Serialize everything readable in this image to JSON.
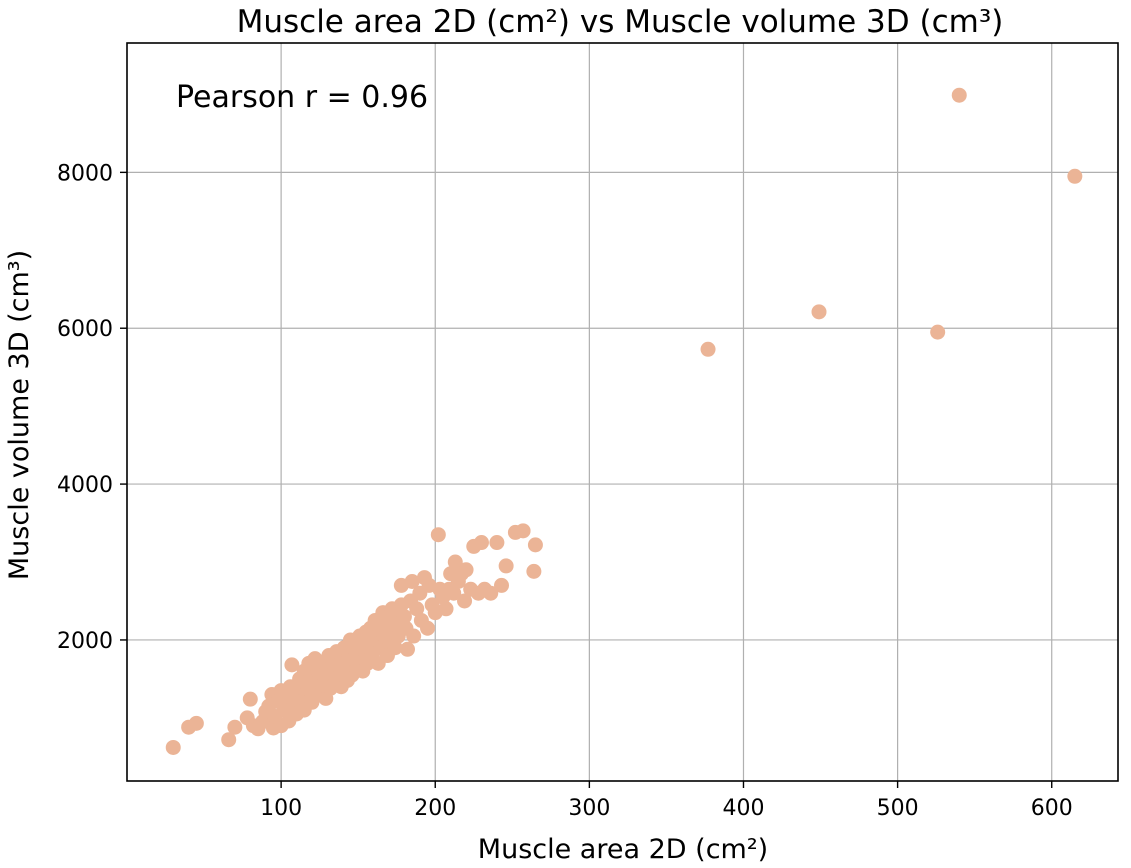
{
  "chart_data": {
    "type": "scatter",
    "title": "Muscle area 2D (cm²) vs Muscle volume 3D (cm³)",
    "xlabel": "Muscle area 2D (cm²)",
    "ylabel": "Muscle volume 3D (cm³)",
    "xlim": [
      0,
      643
    ],
    "ylim": [
      190,
      9660
    ],
    "x_ticks": [
      100,
      200,
      300,
      400,
      500,
      600
    ],
    "y_ticks": [
      2000,
      4000,
      6000,
      8000
    ],
    "grid": true,
    "marker_color": "#ebb496",
    "annotation": "Pearson r = 0.96",
    "points": [
      [
        30,
        620
      ],
      [
        40,
        880
      ],
      [
        45,
        930
      ],
      [
        66,
        720
      ],
      [
        70,
        880
      ],
      [
        78,
        1000
      ],
      [
        80,
        1240
      ],
      [
        82,
        900
      ],
      [
        85,
        860
      ],
      [
        88,
        950
      ],
      [
        90,
        1080
      ],
      [
        92,
        1150
      ],
      [
        94,
        1300
      ],
      [
        95,
        870
      ],
      [
        96,
        1020
      ],
      [
        98,
        1210
      ],
      [
        100,
        1350
      ],
      [
        100,
        900
      ],
      [
        102,
        1100
      ],
      [
        104,
        1250
      ],
      [
        105,
        960
      ],
      [
        106,
        1400
      ],
      [
        107,
        1680
      ],
      [
        108,
        1150
      ],
      [
        110,
        1300
      ],
      [
        110,
        1050
      ],
      [
        112,
        1500
      ],
      [
        113,
        1200
      ],
      [
        114,
        1380
      ],
      [
        115,
        1600
      ],
      [
        115,
        1100
      ],
      [
        116,
        1450
      ],
      [
        117,
        1280
      ],
      [
        118,
        1700
      ],
      [
        119,
        1350
      ],
      [
        120,
        1520
      ],
      [
        120,
        1200
      ],
      [
        121,
        1450
      ],
      [
        122,
        1760
      ],
      [
        123,
        1380
      ],
      [
        124,
        1600
      ],
      [
        125,
        1300
      ],
      [
        125,
        1500
      ],
      [
        126,
        1700
      ],
      [
        127,
        1420
      ],
      [
        128,
        1550
      ],
      [
        129,
        1250
      ],
      [
        130,
        1650
      ],
      [
        130,
        1480
      ],
      [
        131,
        1800
      ],
      [
        132,
        1380
      ],
      [
        133,
        1560
      ],
      [
        134,
        1700
      ],
      [
        135,
        1450
      ],
      [
        135,
        1600
      ],
      [
        136,
        1850
      ],
      [
        137,
        1520
      ],
      [
        138,
        1680
      ],
      [
        139,
        1400
      ],
      [
        140,
        1750
      ],
      [
        140,
        1550
      ],
      [
        141,
        1900
      ],
      [
        142,
        1620
      ],
      [
        143,
        1480
      ],
      [
        144,
        1800
      ],
      [
        145,
        1680
      ],
      [
        145,
        2000
      ],
      [
        146,
        1550
      ],
      [
        147,
        1750
      ],
      [
        148,
        1900
      ],
      [
        149,
        1620
      ],
      [
        150,
        1850
      ],
      [
        150,
        1700
      ],
      [
        151,
        2050
      ],
      [
        152,
        1780
      ],
      [
        153,
        1600
      ],
      [
        154,
        1950
      ],
      [
        155,
        1800
      ],
      [
        155,
        2100
      ],
      [
        156,
        1700
      ],
      [
        157,
        1900
      ],
      [
        158,
        2150
      ],
      [
        159,
        1750
      ],
      [
        160,
        2000
      ],
      [
        160,
        1850
      ],
      [
        161,
        2250
      ],
      [
        162,
        1950
      ],
      [
        163,
        1700
      ],
      [
        164,
        2100
      ],
      [
        165,
        2200
      ],
      [
        165,
        1900
      ],
      [
        166,
        2350
      ],
      [
        167,
        2050
      ],
      [
        168,
        2150
      ],
      [
        169,
        1800
      ],
      [
        170,
        2300
      ],
      [
        170,
        2000
      ],
      [
        172,
        2400
      ],
      [
        173,
        2150
      ],
      [
        174,
        1900
      ],
      [
        175,
        2250
      ],
      [
        176,
        2050
      ],
      [
        178,
        2450
      ],
      [
        178,
        2700
      ],
      [
        180,
        2300
      ],
      [
        181,
        2150
      ],
      [
        182,
        1880
      ],
      [
        184,
        2500
      ],
      [
        185,
        2750
      ],
      [
        186,
        2050
      ],
      [
        188,
        2400
      ],
      [
        190,
        2600
      ],
      [
        191,
        2250
      ],
      [
        193,
        2800
      ],
      [
        195,
        2150
      ],
      [
        196,
        2700
      ],
      [
        198,
        2450
      ],
      [
        200,
        2350
      ],
      [
        202,
        3350
      ],
      [
        203,
        2650
      ],
      [
        205,
        2550
      ],
      [
        207,
        2400
      ],
      [
        209,
        2650
      ],
      [
        210,
        2850
      ],
      [
        212,
        2600
      ],
      [
        213,
        3000
      ],
      [
        215,
        2750
      ],
      [
        217,
        2850
      ],
      [
        219,
        2500
      ],
      [
        220,
        2900
      ],
      [
        223,
        2650
      ],
      [
        225,
        3200
      ],
      [
        228,
        2600
      ],
      [
        230,
        3250
      ],
      [
        232,
        2650
      ],
      [
        236,
        2600
      ],
      [
        240,
        3250
      ],
      [
        243,
        2700
      ],
      [
        246,
        2950
      ],
      [
        252,
        3380
      ],
      [
        257,
        3400
      ],
      [
        264,
        2880
      ],
      [
        265,
        3220
      ],
      [
        377,
        5730
      ],
      [
        449,
        6210
      ],
      [
        526,
        5950
      ],
      [
        540,
        8990
      ],
      [
        615,
        7950
      ]
    ]
  }
}
